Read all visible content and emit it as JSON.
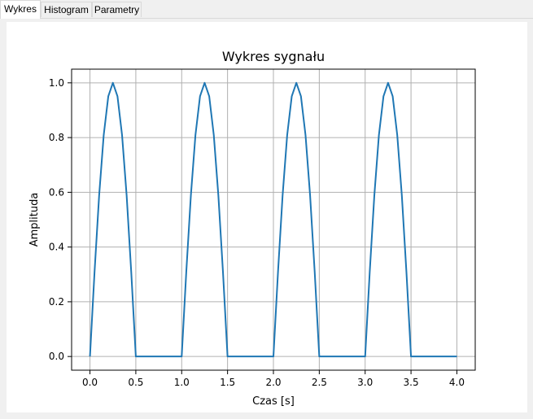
{
  "tabs": [
    {
      "label": "Wykres",
      "active": true
    },
    {
      "label": "Histogram",
      "active": false
    },
    {
      "label": "Parametry",
      "active": false
    }
  ],
  "chart_data": {
    "type": "line",
    "title": "Wykres sygnału",
    "xlabel": "Czas [s]",
    "ylabel": "Amplituda",
    "xlim": [
      -0.2,
      4.2
    ],
    "ylim": [
      -0.05,
      1.05
    ],
    "xticks": [
      0.0,
      0.5,
      1.0,
      1.5,
      2.0,
      2.5,
      3.0,
      3.5,
      4.0
    ],
    "xtick_labels": [
      "0.0",
      "0.5",
      "1.0",
      "1.5",
      "2.0",
      "2.5",
      "3.0",
      "3.5",
      "4.0"
    ],
    "yticks": [
      0.0,
      0.2,
      0.4,
      0.6,
      0.8,
      1.0
    ],
    "ytick_labels": [
      "0.0",
      "0.2",
      "0.4",
      "0.6",
      "0.8",
      "1.0"
    ],
    "grid": true,
    "line_color": "#1f77b4",
    "series": [
      {
        "x": [
          0.0,
          0.05,
          0.1,
          0.15,
          0.2,
          0.25,
          0.3,
          0.35,
          0.4,
          0.45,
          0.5,
          0.55,
          0.6,
          0.65,
          0.7,
          0.75,
          0.8,
          0.85,
          0.9,
          0.95,
          1.0,
          1.05,
          1.1,
          1.15,
          1.2,
          1.25,
          1.3,
          1.35,
          1.4,
          1.45,
          1.5,
          1.55,
          1.6,
          1.65,
          1.7,
          1.75,
          1.8,
          1.85,
          1.9,
          1.95,
          2.0,
          2.05,
          2.1,
          2.15,
          2.2,
          2.25,
          2.3,
          2.35,
          2.4,
          2.45,
          2.5,
          2.55,
          2.6,
          2.65,
          2.7,
          2.75,
          2.8,
          2.85,
          2.9,
          2.95,
          3.0,
          3.05,
          3.1,
          3.15,
          3.2,
          3.25,
          3.3,
          3.35,
          3.4,
          3.45,
          3.5,
          3.55,
          3.6,
          3.65,
          3.7,
          3.75,
          3.8,
          3.85,
          3.9,
          3.95,
          4.0
        ],
        "y": [
          0.0,
          0.309,
          0.588,
          0.809,
          0.951,
          1.0,
          0.951,
          0.809,
          0.588,
          0.309,
          0.0,
          0.0,
          0.0,
          0.0,
          0.0,
          0.0,
          0.0,
          0.0,
          0.0,
          0.0,
          0.0,
          0.309,
          0.588,
          0.809,
          0.951,
          1.0,
          0.951,
          0.809,
          0.588,
          0.309,
          0.0,
          0.0,
          0.0,
          0.0,
          0.0,
          0.0,
          0.0,
          0.0,
          0.0,
          0.0,
          0.0,
          0.309,
          0.588,
          0.809,
          0.951,
          1.0,
          0.951,
          0.809,
          0.588,
          0.309,
          0.0,
          0.0,
          0.0,
          0.0,
          0.0,
          0.0,
          0.0,
          0.0,
          0.0,
          0.0,
          0.0,
          0.309,
          0.588,
          0.809,
          0.951,
          1.0,
          0.951,
          0.809,
          0.588,
          0.309,
          0.0,
          0.0,
          0.0,
          0.0,
          0.0,
          0.0,
          0.0,
          0.0,
          0.0,
          0.0,
          0.0
        ]
      }
    ]
  }
}
